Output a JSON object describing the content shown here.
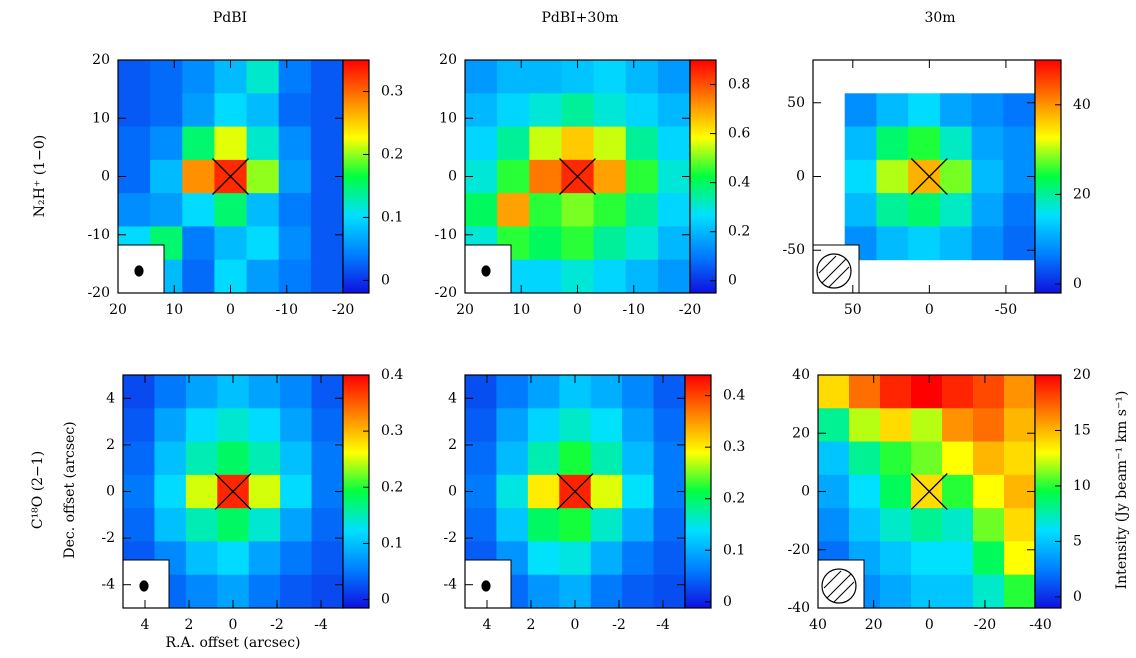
{
  "figure": {
    "column_titles": [
      "PdBI",
      "PdBI+30m",
      "30m"
    ],
    "row_labels": [
      "N₂H⁺ (1−0)",
      "C¹⁸O (2−1)"
    ],
    "y_label": "Dec. offset (arcsec)",
    "x_label": "R.A. offset (arcsec)",
    "colorbar_label": "Intensity (Jy beam⁻¹ km s⁻¹)",
    "colormap": [
      "#1010e0",
      "#0080ff",
      "#00e0ff",
      "#00ff40",
      "#ffff00",
      "#ff8000",
      "#ff0000"
    ]
  },
  "chart_data": [
    {
      "type": "heatmap",
      "xlim": [
        20,
        -20
      ],
      "ylim": [
        -20,
        20
      ],
      "xticks": [
        20,
        10,
        0,
        -10,
        -20
      ],
      "yticks": [
        -20,
        -10,
        0,
        10,
        20
      ],
      "clim": [
        -0.02,
        0.35
      ],
      "cticks": [
        0,
        0.1,
        0.2,
        0.3
      ],
      "z": [
        [
          0.02,
          0.03,
          0.05,
          0.08,
          0.12,
          0.04,
          0.02
        ],
        [
          0.02,
          0.03,
          0.06,
          0.1,
          0.08,
          0.03,
          0.02
        ],
        [
          0.03,
          0.05,
          0.15,
          0.22,
          0.12,
          0.05,
          0.02
        ],
        [
          0.03,
          0.08,
          0.28,
          0.33,
          0.2,
          0.06,
          0.02
        ],
        [
          0.05,
          0.06,
          0.1,
          0.15,
          0.08,
          0.04,
          0.02
        ],
        [
          0.1,
          0.15,
          0.04,
          0.08,
          0.1,
          0.05,
          0.02
        ],
        [
          0.05,
          0.08,
          0.03,
          0.1,
          0.06,
          0.04,
          0.02
        ]
      ]
    },
    {
      "type": "heatmap",
      "xlim": [
        20,
        -20
      ],
      "ylim": [
        -20,
        20
      ],
      "xticks": [
        20,
        10,
        0,
        -10,
        -20
      ],
      "yticks": [
        -20,
        -10,
        0,
        10,
        20
      ],
      "clim": [
        -0.05,
        0.9
      ],
      "cticks": [
        0,
        0.2,
        0.4,
        0.6,
        0.8
      ],
      "z": [
        [
          0.15,
          0.2,
          0.2,
          0.22,
          0.25,
          0.2,
          0.15
        ],
        [
          0.2,
          0.25,
          0.3,
          0.35,
          0.3,
          0.25,
          0.2
        ],
        [
          0.25,
          0.35,
          0.55,
          0.65,
          0.55,
          0.35,
          0.25
        ],
        [
          0.3,
          0.45,
          0.75,
          0.85,
          0.7,
          0.45,
          0.3
        ],
        [
          0.4,
          0.7,
          0.45,
          0.5,
          0.45,
          0.35,
          0.25
        ],
        [
          0.3,
          0.45,
          0.4,
          0.45,
          0.35,
          0.3,
          0.2
        ],
        [
          0.2,
          0.25,
          0.25,
          0.3,
          0.25,
          0.2,
          0.15
        ]
      ]
    },
    {
      "type": "heatmap",
      "xlim": [
        76,
        -69
      ],
      "ylim": [
        -79,
        79
      ],
      "xticks": [
        50,
        0,
        -50
      ],
      "yticks": [
        -50,
        0,
        50
      ],
      "clim": [
        -2,
        50
      ],
      "cticks": [
        0,
        20,
        40
      ],
      "z": [
        [
          null,
          null,
          null,
          null,
          null,
          null,
          null
        ],
        [
          null,
          8,
          12,
          15,
          10,
          8,
          6
        ],
        [
          null,
          12,
          22,
          25,
          18,
          10,
          8
        ],
        [
          null,
          15,
          30,
          38,
          28,
          12,
          8
        ],
        [
          null,
          12,
          20,
          22,
          18,
          10,
          6
        ],
        [
          null,
          8,
          12,
          14,
          12,
          8,
          5
        ],
        [
          null,
          null,
          null,
          null,
          null,
          null,
          null
        ]
      ]
    },
    {
      "type": "heatmap",
      "xlim": [
        5,
        -5
      ],
      "ylim": [
        -5,
        5
      ],
      "xticks": [
        4,
        2,
        0,
        -2,
        -4
      ],
      "yticks": [
        -4,
        -2,
        0,
        2,
        4
      ],
      "clim": [
        -0.015,
        0.4
      ],
      "cticks": [
        0,
        0.1,
        0.2,
        0.3,
        0.4
      ],
      "z": [
        [
          0.02,
          0.05,
          0.08,
          0.1,
          0.08,
          0.06,
          0.03
        ],
        [
          0.03,
          0.08,
          0.12,
          0.14,
          0.12,
          0.08,
          0.04
        ],
        [
          0.04,
          0.1,
          0.15,
          0.18,
          0.15,
          0.1,
          0.05
        ],
        [
          0.05,
          0.12,
          0.25,
          0.38,
          0.25,
          0.12,
          0.05
        ],
        [
          0.04,
          0.1,
          0.15,
          0.18,
          0.14,
          0.08,
          0.04
        ],
        [
          0.03,
          0.06,
          0.1,
          0.12,
          0.08,
          0.05,
          0.03
        ],
        [
          0.02,
          0.04,
          0.06,
          0.08,
          0.05,
          0.03,
          0.02
        ]
      ]
    },
    {
      "type": "heatmap",
      "xlim": [
        5,
        -5
      ],
      "ylim": [
        -5,
        5
      ],
      "xticks": [
        4,
        2,
        0,
        -2,
        -4
      ],
      "yticks": [
        -4,
        -2,
        0,
        2,
        4
      ],
      "clim": [
        -0.012,
        0.44
      ],
      "cticks": [
        0,
        0.1,
        0.2,
        0.3,
        0.4
      ],
      "z": [
        [
          0.03,
          0.06,
          0.09,
          0.12,
          0.1,
          0.07,
          0.04
        ],
        [
          0.04,
          0.09,
          0.13,
          0.16,
          0.14,
          0.09,
          0.05
        ],
        [
          0.05,
          0.11,
          0.17,
          0.22,
          0.17,
          0.11,
          0.06
        ],
        [
          0.06,
          0.15,
          0.3,
          0.42,
          0.28,
          0.14,
          0.06
        ],
        [
          0.05,
          0.12,
          0.2,
          0.22,
          0.16,
          0.1,
          0.05
        ],
        [
          0.04,
          0.08,
          0.14,
          0.15,
          0.1,
          0.06,
          0.04
        ],
        [
          0.03,
          0.05,
          0.08,
          0.1,
          0.06,
          0.04,
          0.03
        ]
      ]
    },
    {
      "type": "heatmap",
      "xlim": [
        40,
        -38
      ],
      "ylim": [
        -40,
        40
      ],
      "xticks": [
        40,
        20,
        0,
        -20,
        -40
      ],
      "yticks": [
        -40,
        -20,
        0,
        20,
        40
      ],
      "clim": [
        -1,
        20
      ],
      "cticks": [
        0,
        5,
        10,
        15,
        20
      ],
      "z": [
        [
          14,
          17,
          19,
          20,
          19,
          18,
          16
        ],
        [
          8,
          12,
          14,
          12,
          16,
          17,
          15
        ],
        [
          5,
          8,
          10,
          11,
          13,
          15,
          14
        ],
        [
          4,
          6,
          9,
          14,
          10,
          13,
          15
        ],
        [
          3,
          5,
          7,
          8,
          7,
          11,
          14
        ],
        [
          2,
          4,
          5,
          6,
          6,
          9,
          13
        ],
        [
          1,
          3,
          4,
          5,
          5,
          7,
          10
        ]
      ]
    }
  ]
}
